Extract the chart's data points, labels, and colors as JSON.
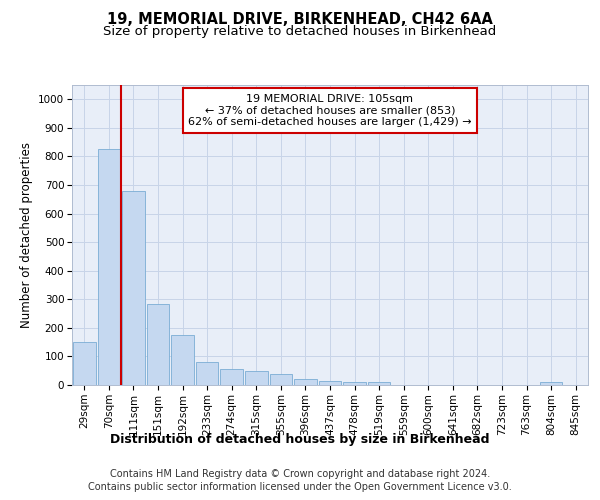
{
  "title": "19, MEMORIAL DRIVE, BIRKENHEAD, CH42 6AA",
  "subtitle": "Size of property relative to detached houses in Birkenhead",
  "xlabel": "Distribution of detached houses by size in Birkenhead",
  "ylabel": "Number of detached properties",
  "bar_labels": [
    "29sqm",
    "70sqm",
    "111sqm",
    "151sqm",
    "192sqm",
    "233sqm",
    "274sqm",
    "315sqm",
    "355sqm",
    "396sqm",
    "437sqm",
    "478sqm",
    "519sqm",
    "559sqm",
    "600sqm",
    "641sqm",
    "682sqm",
    "723sqm",
    "763sqm",
    "804sqm",
    "845sqm"
  ],
  "bar_values": [
    150,
    825,
    680,
    285,
    175,
    80,
    55,
    50,
    40,
    22,
    15,
    12,
    12,
    0,
    0,
    0,
    0,
    0,
    0,
    12,
    0
  ],
  "bar_color": "#c5d8f0",
  "bar_edge_color": "#7aadd4",
  "red_line_x": 2.0,
  "annotation_line1": "19 MEMORIAL DRIVE: 105sqm",
  "annotation_line2": "← 37% of detached houses are smaller (853)",
  "annotation_line3": "62% of semi-detached houses are larger (1,429) →",
  "annotation_box_color": "#ffffff",
  "annotation_box_edge": "#cc0000",
  "annotation_fontsize": 8,
  "ylim": [
    0,
    1050
  ],
  "yticks": [
    0,
    100,
    200,
    300,
    400,
    500,
    600,
    700,
    800,
    900,
    1000
  ],
  "grid_color": "#c8d4e8",
  "plot_bg_color": "#e8eef8",
  "footer_line1": "Contains HM Land Registry data © Crown copyright and database right 2024.",
  "footer_line2": "Contains public sector information licensed under the Open Government Licence v3.0.",
  "title_fontsize": 10.5,
  "subtitle_fontsize": 9.5,
  "xlabel_fontsize": 9,
  "ylabel_fontsize": 8.5,
  "tick_fontsize": 7.5,
  "footer_fontsize": 7
}
